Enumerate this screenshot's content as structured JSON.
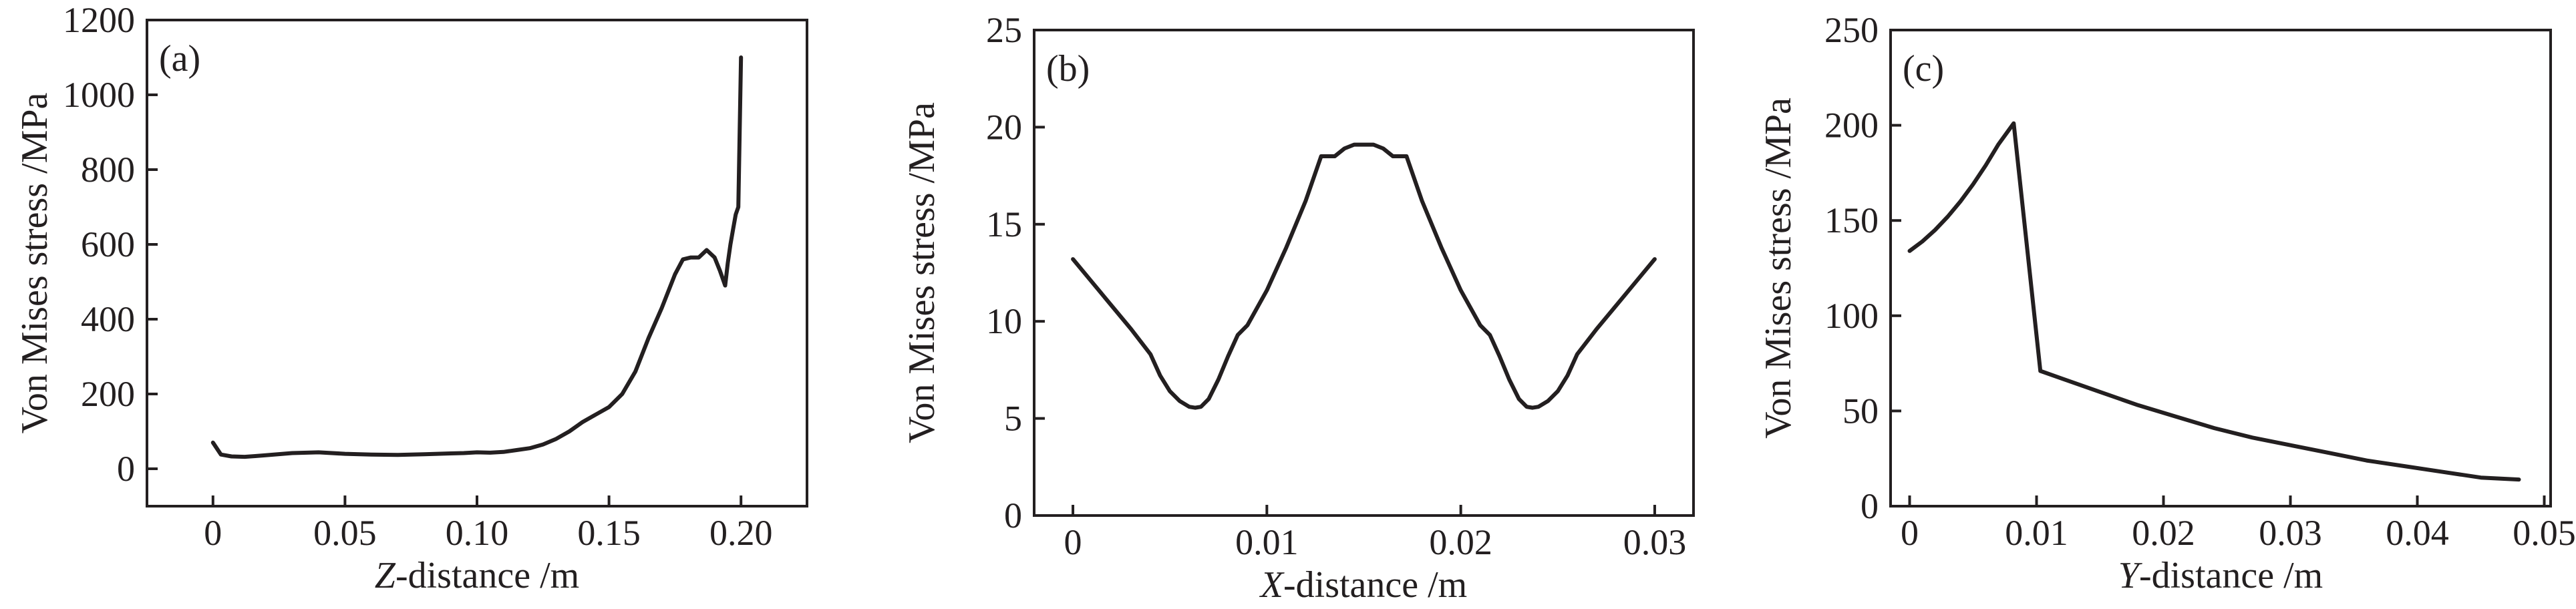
{
  "chart_data": [
    {
      "type": "line",
      "panel_label": "(a)",
      "xlabel_var": "Z",
      "xlabel_rest": "-distance /m",
      "ylabel": "Von Mises stress /MPa",
      "xlim": [
        -0.025,
        0.225
      ],
      "ylim": [
        -100,
        1200
      ],
      "xticks": [
        0,
        0.05,
        0.1,
        0.15,
        0.2
      ],
      "xtick_labels": [
        "0",
        "0.05",
        "0.10",
        "0.15",
        "0.20"
      ],
      "yticks": [
        0,
        200,
        400,
        600,
        800,
        1000,
        1200
      ],
      "ytick_labels": [
        "0",
        "200",
        "400",
        "600",
        "800",
        "1000",
        "1200"
      ],
      "grid": false,
      "series": [
        {
          "x": [
            0,
            0.003,
            0.007,
            0.012,
            0.016,
            0.02,
            0.03,
            0.04,
            0.05,
            0.06,
            0.07,
            0.08,
            0.09,
            0.095,
            0.1,
            0.105,
            0.11,
            0.115,
            0.12,
            0.125,
            0.13,
            0.135,
            0.14,
            0.145,
            0.15,
            0.155,
            0.16,
            0.165,
            0.17,
            0.175,
            0.178,
            0.181,
            0.184,
            0.187,
            0.19,
            0.192,
            0.194,
            0.195,
            0.196,
            0.197,
            0.198,
            0.199,
            0.1995,
            0.2
          ],
          "values": [
            70,
            38,
            33,
            32,
            34,
            36,
            42,
            44,
            40,
            38,
            37,
            39,
            41,
            42,
            44,
            43,
            45,
            50,
            55,
            65,
            80,
            100,
            125,
            145,
            165,
            200,
            260,
            350,
            430,
            520,
            560,
            565,
            565,
            585,
            565,
            530,
            490,
            550,
            600,
            640,
            680,
            700,
            900,
            1100
          ]
        }
      ]
    },
    {
      "type": "line",
      "panel_label": "(b)",
      "xlabel_var": "X",
      "xlabel_rest": "-distance /m",
      "ylabel": "Von Mises stress /MPa",
      "xlim": [
        -0.002,
        0.032
      ],
      "ylim": [
        0,
        25
      ],
      "xticks": [
        0,
        0.01,
        0.02,
        0.03
      ],
      "xtick_labels": [
        "0",
        "0.01",
        "0.02",
        "0.03"
      ],
      "yticks": [
        0,
        5,
        10,
        15,
        20,
        25
      ],
      "ytick_labels": [
        "0",
        "5",
        "10",
        "15",
        "20",
        "25"
      ],
      "grid": false,
      "series": [
        {
          "x": [
            0,
            0.001,
            0.002,
            0.003,
            0.004,
            0.0045,
            0.005,
            0.0055,
            0.006,
            0.0063,
            0.0066,
            0.007,
            0.0075,
            0.008,
            0.0085,
            0.009,
            0.01,
            0.011,
            0.012,
            0.0128,
            0.0135,
            0.014,
            0.0145,
            0.0155,
            0.016,
            0.0165,
            0.0172,
            0.018,
            0.019,
            0.02,
            0.021,
            0.0215,
            0.022,
            0.0225,
            0.023,
            0.0234,
            0.0237,
            0.024,
            0.0245,
            0.025,
            0.0255,
            0.026,
            0.027,
            0.028,
            0.029,
            0.03
          ],
          "values": [
            13.2,
            12.0,
            10.8,
            9.6,
            8.3,
            7.2,
            6.4,
            5.9,
            5.6,
            5.55,
            5.6,
            6.0,
            7.0,
            8.2,
            9.3,
            9.8,
            11.6,
            13.8,
            16.2,
            18.5,
            18.5,
            18.9,
            19.1,
            19.1,
            18.9,
            18.5,
            18.5,
            16.2,
            13.8,
            11.6,
            9.8,
            9.3,
            8.2,
            7.0,
            6.0,
            5.6,
            5.55,
            5.6,
            5.9,
            6.4,
            7.2,
            8.3,
            9.6,
            10.8,
            12.0,
            13.2
          ]
        }
      ]
    },
    {
      "type": "line",
      "panel_label": "(c)",
      "xlabel_var": "Y",
      "xlabel_rest": "-distance /m",
      "ylabel": "Von Mises stress /MPa",
      "xlim": [
        -0.0015,
        0.0505
      ],
      "ylim": [
        0,
        250
      ],
      "xticks": [
        0,
        0.01,
        0.02,
        0.03,
        0.04,
        0.05
      ],
      "xtick_labels": [
        "0",
        "0.01",
        "0.02",
        "0.03",
        "0.04",
        "0.05"
      ],
      "yticks": [
        0,
        50,
        100,
        150,
        200,
        250
      ],
      "ytick_labels": [
        "0",
        "50",
        "100",
        "150",
        "200",
        "250"
      ],
      "grid": false,
      "series": [
        {
          "x": [
            0,
            0.001,
            0.002,
            0.003,
            0.004,
            0.005,
            0.006,
            0.007,
            0.0082,
            0.0103,
            0.012,
            0.015,
            0.018,
            0.021,
            0.024,
            0.027,
            0.03,
            0.033,
            0.036,
            0.039,
            0.042,
            0.045,
            0.048
          ],
          "values": [
            134,
            139,
            145,
            152,
            160,
            169,
            179,
            190,
            201,
            71,
            67,
            60,
            53,
            47,
            41,
            36,
            32,
            28,
            24,
            21,
            18,
            15,
            14
          ]
        }
      ]
    }
  ]
}
